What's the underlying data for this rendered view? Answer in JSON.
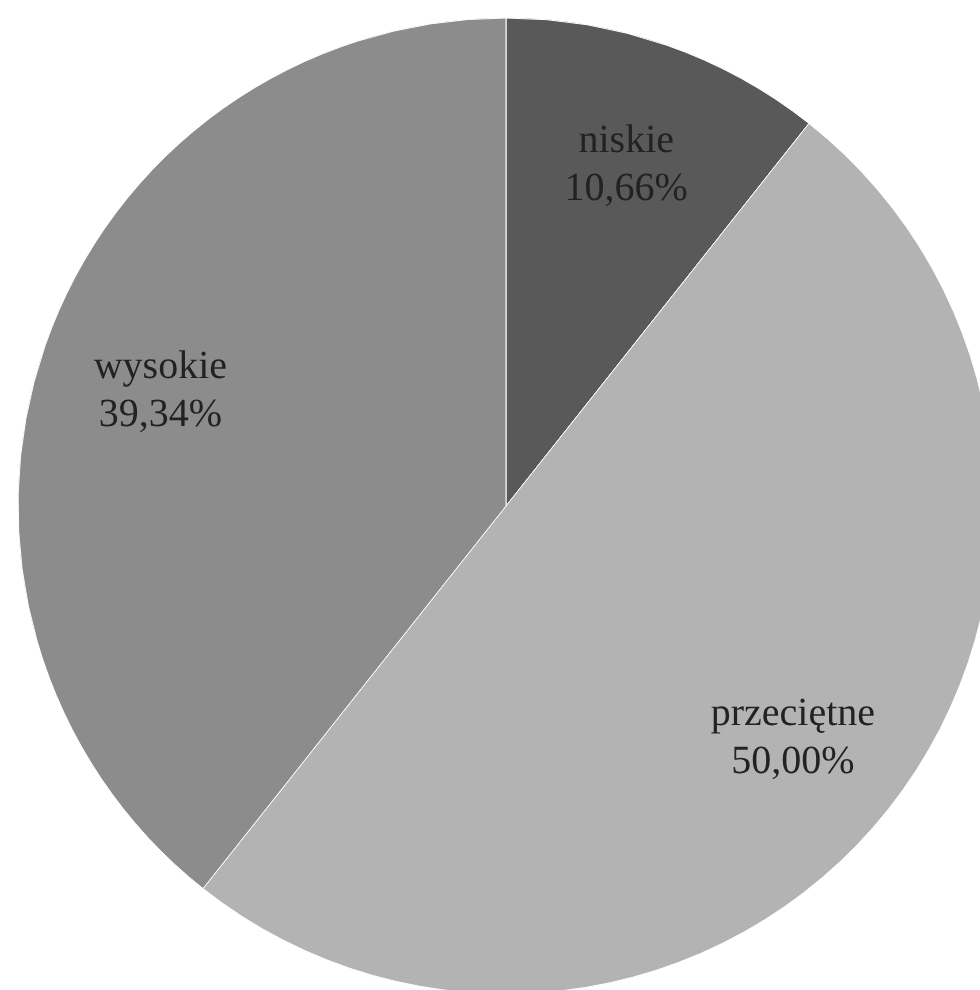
{
  "chart_data": {
    "type": "pie",
    "categories": [
      "niskie",
      "przeciętne",
      "wysokie"
    ],
    "values": [
      10.66,
      50.0,
      39.34
    ],
    "colors": [
      "#595959",
      "#b3b3b3",
      "#8c8c8c"
    ],
    "value_labels": [
      "10,66%",
      "50,00%",
      "39,34%"
    ]
  }
}
